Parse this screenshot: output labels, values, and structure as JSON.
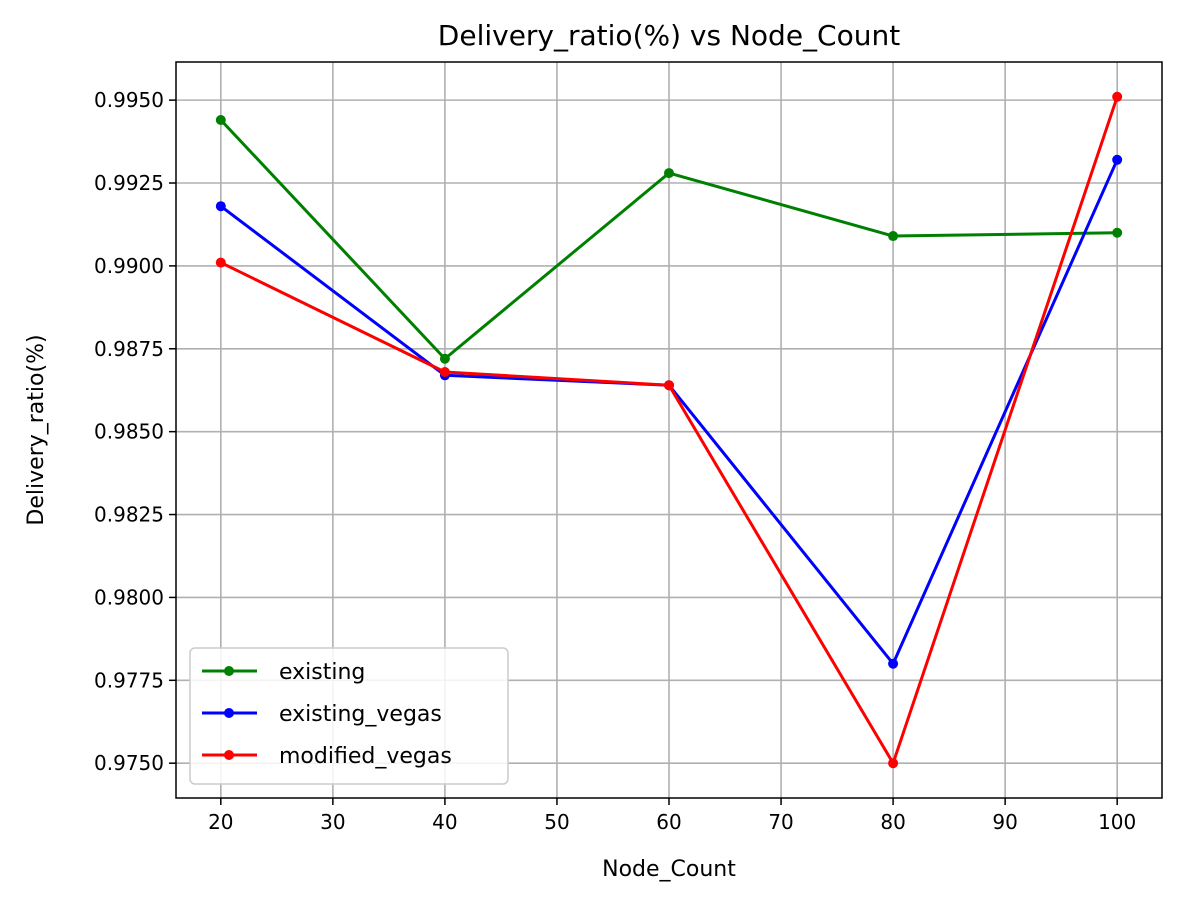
{
  "chart_data": {
    "type": "line",
    "title": "Delivery_ratio(%) vs Node_Count",
    "xlabel": "Node_Count",
    "ylabel": "Delivery_ratio(%)",
    "x": [
      20,
      40,
      60,
      80,
      100
    ],
    "xlim": [
      16,
      104
    ],
    "ylim": [
      0.97395,
      0.99615
    ],
    "xticks": [
      20,
      30,
      40,
      50,
      60,
      70,
      80,
      90,
      100
    ],
    "yticks": [
      0.975,
      0.9775,
      0.98,
      0.9825,
      0.985,
      0.9875,
      0.99,
      0.9925,
      0.995
    ],
    "ytick_labels": [
      "0.9750",
      "0.9775",
      "0.9800",
      "0.9825",
      "0.9850",
      "0.9875",
      "0.9900",
      "0.9925",
      "0.9950"
    ],
    "grid": true,
    "legend_position": "lower-left",
    "series": [
      {
        "name": "existing",
        "color": "#008000",
        "values": [
          0.9944,
          0.9872,
          0.9928,
          0.9909,
          0.991
        ]
      },
      {
        "name": "existing_vegas",
        "color": "#0000ff",
        "values": [
          0.9918,
          0.9867,
          0.9864,
          0.978,
          0.9932
        ]
      },
      {
        "name": "modified_vegas",
        "color": "#ff0000",
        "values": [
          0.9901,
          0.9868,
          0.9864,
          0.975,
          0.9951
        ]
      }
    ]
  }
}
